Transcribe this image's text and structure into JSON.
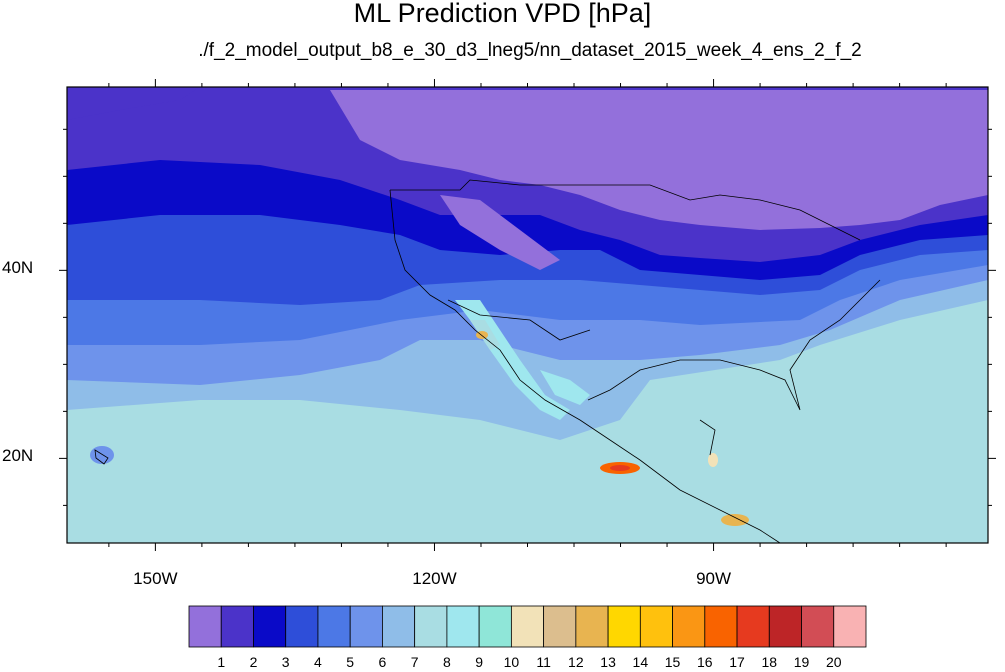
{
  "title": "ML Prediction VPD [hPa]",
  "subtitle": "./f_2_model_output_b8_e_30_d3_lneg5/nn_dataset_2015_week_4_ens_2_f_2",
  "map": {
    "variable": "VPD",
    "units": "hPa",
    "lat_ticks": [
      {
        "label": "40N",
        "value": 40
      },
      {
        "label": "20N",
        "value": 20
      }
    ],
    "lon_ticks": [
      {
        "label": "150W",
        "value": -150
      },
      {
        "label": "120W",
        "value": -120
      },
      {
        "label": "90W",
        "value": -90
      }
    ],
    "lon_range": [
      -159.5,
      -60.5
    ],
    "lat_range": [
      11,
      59.5
    ]
  },
  "colorbar": {
    "labels": [
      "1",
      "2",
      "3",
      "4",
      "5",
      "6",
      "7",
      "8",
      "9",
      "10",
      "11",
      "12",
      "13",
      "14",
      "15",
      "16",
      "17",
      "18",
      "19",
      "20"
    ],
    "colors": [
      "#9370db",
      "#4b33c9",
      "#0a0ac8",
      "#2e4ed9",
      "#4c78e6",
      "#6e93eb",
      "#8fbde8",
      "#a9dde3",
      "#9fe7ee",
      "#8fe6d8",
      "#f2e2b8",
      "#dcbe8e",
      "#e8b450",
      "#ffd700",
      "#ffc10d",
      "#fa9614",
      "#f96300",
      "#e63a1f",
      "#bd2527",
      "#d24d55",
      "#f9b2b3"
    ]
  }
}
